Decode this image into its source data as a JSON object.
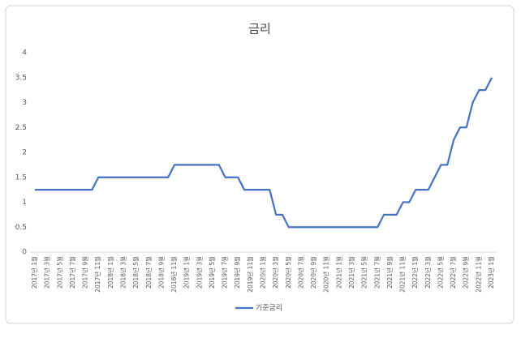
{
  "chart_data": {
    "type": "line",
    "title": "금리",
    "categories": [
      "2017년 1월",
      null,
      "2017년 3월",
      null,
      "2017년 5월",
      null,
      "2017년 7월",
      null,
      "2017년 9월",
      null,
      "2017년 11월",
      null,
      "2018년 1월",
      null,
      "2018년 3월",
      null,
      "2018년 5월",
      null,
      "2018년 7월",
      null,
      "2018년 9월",
      null,
      "2018년 11월",
      null,
      "2019년 1월",
      null,
      "2019년 3월",
      null,
      "2019년 5월",
      null,
      "2019년 7월",
      null,
      "2019년 9월",
      null,
      "2019년 11월",
      null,
      "2020년 1월",
      null,
      "2020년 3월",
      null,
      "2020년 5월",
      null,
      "2020년 7월",
      null,
      "2020년 9월",
      null,
      "2020년 11월",
      null,
      "2021년 1월",
      null,
      "2021년 3월",
      null,
      "2021년 5월",
      null,
      "2021년 7월",
      null,
      "2021년 9월",
      null,
      "2021년 11월",
      null,
      "2022년 1월",
      null,
      "2022년 3월",
      null,
      "2022년 5월",
      null,
      "2022년 7월",
      null,
      "2022년 9월",
      null,
      "2022년 11월",
      null,
      "2023년 1월"
    ],
    "series": [
      {
        "name": "기준금리",
        "color": "#4472c4",
        "values": [
          1.25,
          1.25,
          1.25,
          1.25,
          1.25,
          1.25,
          1.25,
          1.25,
          1.25,
          1.25,
          1.5,
          1.5,
          1.5,
          1.5,
          1.5,
          1.5,
          1.5,
          1.5,
          1.5,
          1.5,
          1.5,
          1.5,
          1.75,
          1.75,
          1.75,
          1.75,
          1.75,
          1.75,
          1.75,
          1.75,
          1.5,
          1.5,
          1.5,
          1.25,
          1.25,
          1.25,
          1.25,
          1.25,
          0.75,
          0.75,
          0.5,
          0.5,
          0.5,
          0.5,
          0.5,
          0.5,
          0.5,
          0.5,
          0.5,
          0.5,
          0.5,
          0.5,
          0.5,
          0.5,
          0.5,
          0.75,
          0.75,
          0.75,
          1.0,
          1.0,
          1.25,
          1.25,
          1.25,
          1.5,
          1.75,
          1.75,
          2.25,
          2.5,
          2.5,
          3.0,
          3.25,
          3.25,
          3.5
        ]
      }
    ],
    "ylim": [
      0,
      4
    ],
    "yticks": [
      0,
      0.5,
      1,
      1.5,
      2,
      2.5,
      3,
      3.5,
      4
    ],
    "grid": false,
    "legend": "bottom"
  }
}
